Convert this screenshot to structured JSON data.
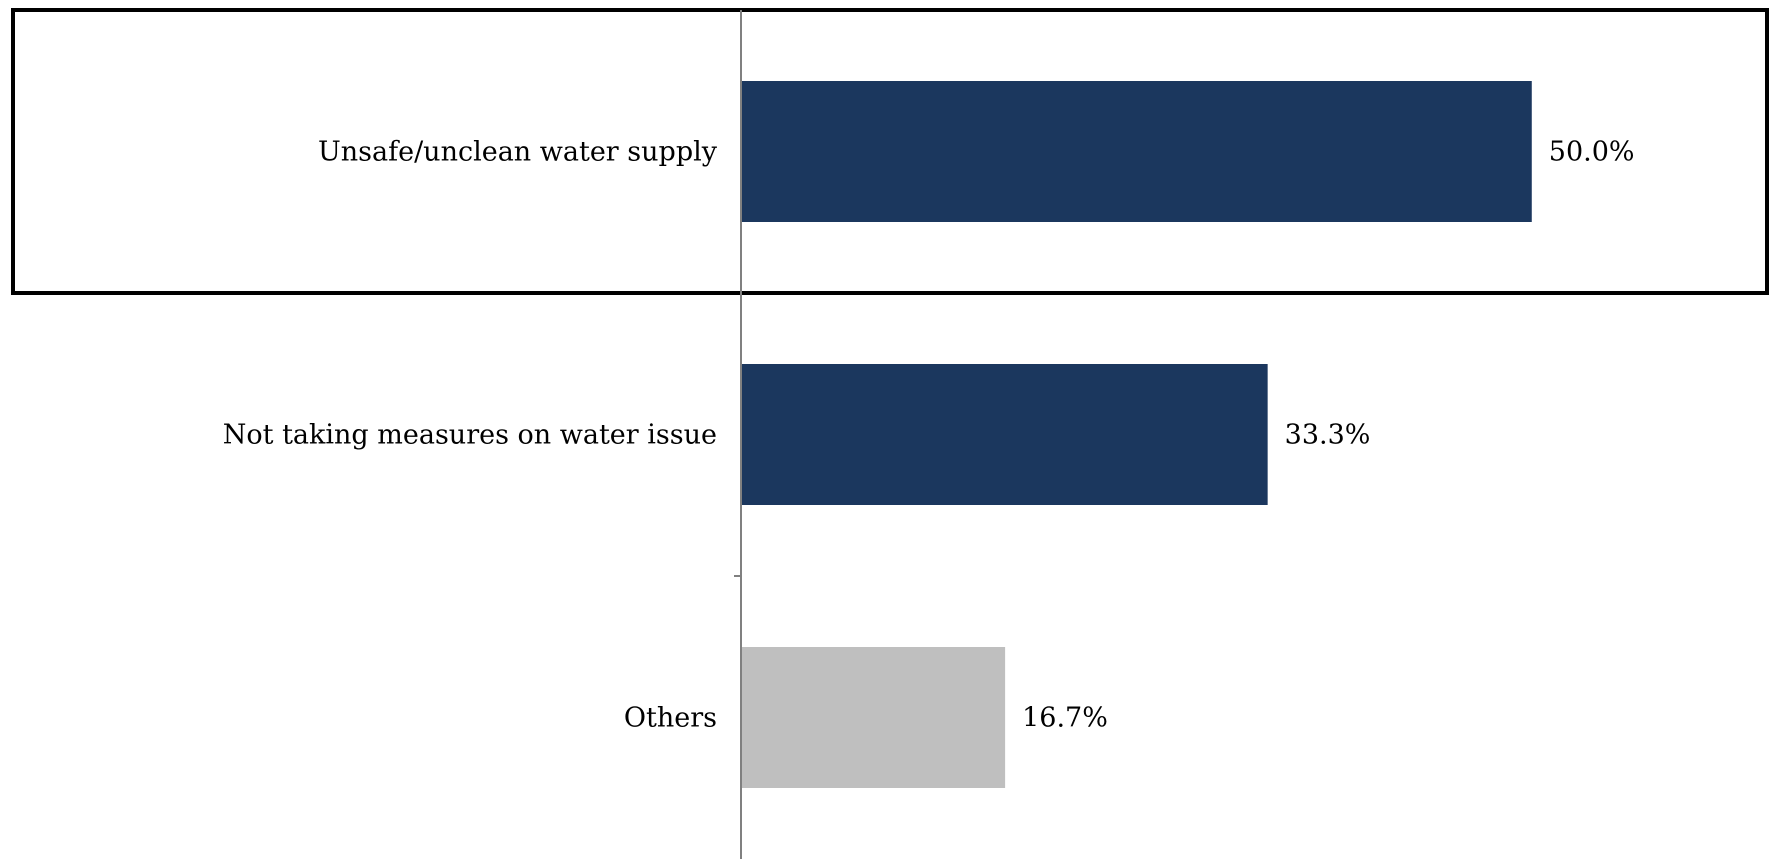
{
  "chart_data": {
    "type": "bar",
    "orientation": "horizontal",
    "categories": [
      "Unsafe/unclean water supply",
      "Not taking measures on water issue",
      "Others"
    ],
    "values": [
      50.0,
      33.3,
      16.7
    ],
    "value_labels": [
      "50.0%",
      "33.3%",
      "16.7%"
    ],
    "colors": [
      "#1b375e",
      "#1b375e",
      "#bfbfbf"
    ],
    "highlighted_category": "Unsafe/unclean water supply",
    "xlim": [
      0,
      65
    ],
    "grid": false,
    "legend": "none"
  }
}
